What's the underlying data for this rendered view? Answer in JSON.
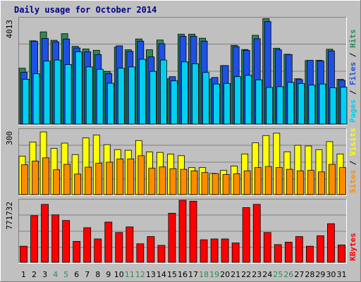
{
  "chart_data": {
    "title": "Daily usage for October 2014",
    "days": [
      "1",
      "2",
      "3",
      "4",
      "5",
      "6",
      "7",
      "8",
      "9",
      "10",
      "11",
      "12",
      "13",
      "14",
      "15",
      "16",
      "17",
      "18",
      "19",
      "20",
      "21",
      "22",
      "23",
      "24",
      "25",
      "26",
      "27",
      "28",
      "29",
      "30",
      "31"
    ],
    "weekend_days": [
      "4",
      "5",
      "11",
      "12",
      "18",
      "19",
      "25",
      "26"
    ],
    "colors": {
      "hits": "#2e8b57",
      "files": "#1e50e6",
      "pages": "#00d0f0",
      "visits": "#ffff00",
      "sites": "#ff8c00",
      "kbytes": "#ff0000",
      "weekend_label": "#2e8b57",
      "weekday_label": "#000000",
      "slash": "#000000"
    },
    "panels": [
      {
        "id": "hits",
        "type": "bar",
        "ytick": "4013",
        "ymax": 4013,
        "right_labels": [
          "Pages",
          "Files",
          "Hits"
        ],
        "series": [
          {
            "name": "Hits",
            "color_key": "hits",
            "values": [
              2120,
              3160,
              3500,
              3180,
              3430,
              2950,
              2850,
              2800,
              2000,
              2920,
              2820,
              3230,
              2820,
              3190,
              1720,
              3410,
              3410,
              3260,
              1710,
              2220,
              2990,
              2830,
              3370,
              4000,
              2880,
              2650,
              1720,
              2410,
              2420,
              2840,
              1700
            ]
          },
          {
            "name": "Files",
            "color_key": "files",
            "values": [
              1970,
              3140,
              3250,
              3120,
              3230,
              2890,
              2740,
              2640,
              1920,
              2970,
              2760,
              3150,
              2550,
              3050,
              1800,
              3330,
              3330,
              3150,
              1770,
              2220,
              2940,
              2800,
              3240,
              3890,
              2820,
              2640,
              1690,
              2420,
              2400,
              2780,
              1660
            ]
          },
          {
            "name": "Pages",
            "color_key": "pages",
            "values": [
              1700,
              1910,
              2390,
              2430,
              2260,
              2740,
              2170,
              2080,
              1550,
              2120,
              2170,
              2460,
              2000,
              2430,
              1640,
              2360,
              2290,
              1960,
              1520,
              1540,
              1800,
              1850,
              1680,
              1390,
              1420,
              1580,
              1540,
              1480,
              1520,
              1380,
              1400
            ]
          }
        ]
      },
      {
        "id": "visits",
        "type": "bar",
        "ytick": "300",
        "ymax": 300,
        "right_labels": [
          "Sites",
          "Visits"
        ],
        "series": [
          {
            "name": "Visits",
            "color_key": "visits",
            "values": [
              178,
              243,
              290,
              213,
              238,
              185,
              262,
              275,
              231,
              208,
              205,
              250,
              197,
              195,
              187,
              180,
              125,
              125,
              98,
              112,
              132,
              188,
              240,
              273,
              284,
              198,
              228,
              225,
              208,
              245,
              188
            ]
          },
          {
            "name": "Sites",
            "color_key": "sites",
            "values": [
              138,
              155,
              170,
              115,
              140,
              95,
              127,
              145,
              150,
              165,
              165,
              180,
              122,
              128,
              120,
              117,
              110,
              102,
              97,
              93,
              96,
              110,
              125,
              130,
              125,
              117,
              110,
              112,
              105,
              140,
              125
            ]
          }
        ]
      },
      {
        "id": "kbytes",
        "type": "bar",
        "ytick": "771732",
        "ymax": 771732,
        "right_labels": [
          "KBytes"
        ],
        "series": [
          {
            "name": "KBytes",
            "color_key": "kbytes",
            "values": [
              200000,
              580000,
              720000,
              590000,
              520000,
              260000,
              430000,
              290000,
              500000,
              370000,
              440000,
              230000,
              320000,
              210000,
              610000,
              780000,
              760000,
              280000,
              290000,
              290000,
              240000,
              680000,
              720000,
              370000,
              220000,
              250000,
              320000,
              200000,
              330000,
              480000,
              215000
            ]
          }
        ]
      }
    ]
  }
}
